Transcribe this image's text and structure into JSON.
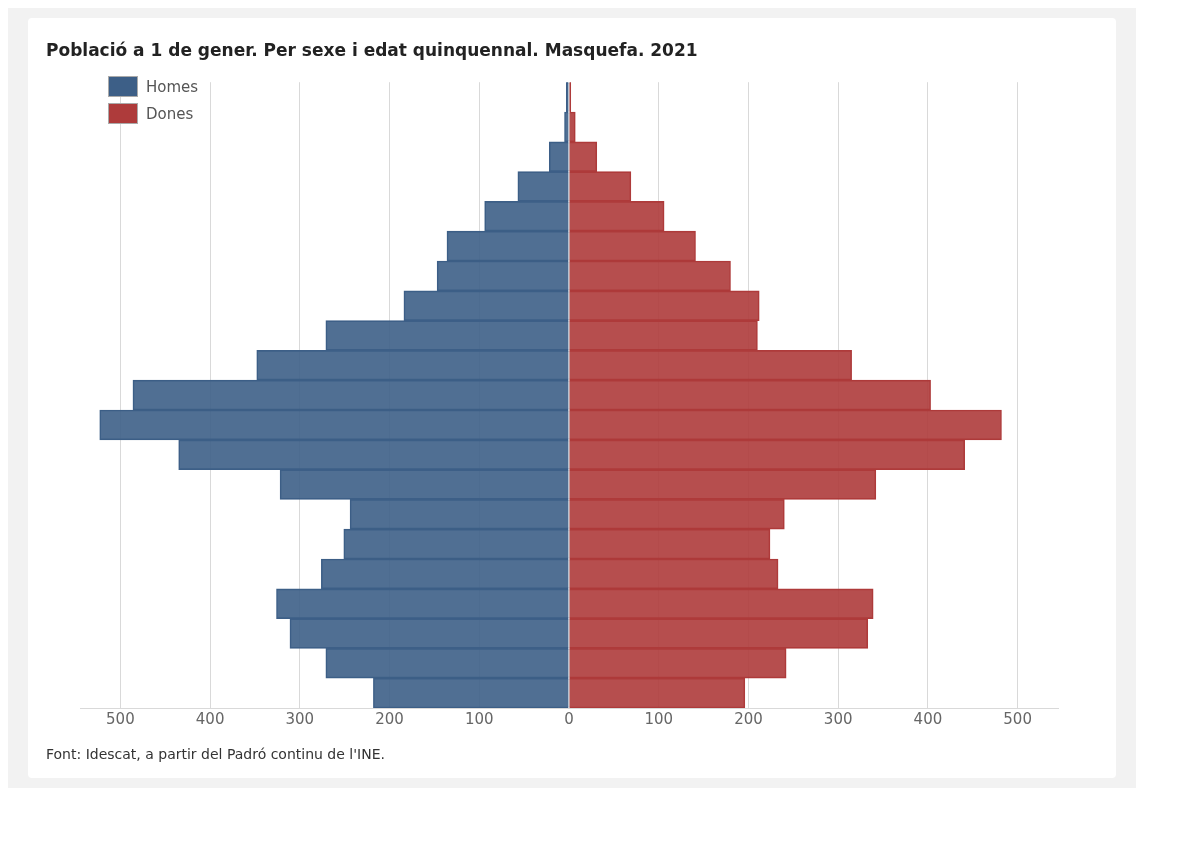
{
  "chart_data": {
    "type": "bar",
    "orientation": "horizontal",
    "stacked": true,
    "title": "Població a 1 de gener. Per sexe i edat quinquennal. Masquefa. 2021",
    "categories": [
      null,
      null,
      null,
      null,
      null,
      null,
      null,
      null,
      null,
      null,
      null,
      null,
      null,
      null,
      null,
      null,
      null,
      null,
      null,
      null,
      null
    ],
    "series": [
      {
        "name": "Homes",
        "color": "#3d5f87",
        "values": [
          -3,
          -5,
          -22,
          -57,
          -94,
          -136,
          -147,
          -184,
          -271,
          -348,
          -486,
          -523,
          -435,
          -322,
          -244,
          -251,
          -276,
          -326,
          -311,
          -271,
          -218
        ]
      },
      {
        "name": "Dones",
        "color": "#ae3b3b",
        "values": [
          2,
          7,
          31,
          69,
          106,
          141,
          180,
          212,
          210,
          315,
          403,
          482,
          441,
          342,
          240,
          224,
          233,
          339,
          333,
          242,
          196
        ]
      }
    ],
    "xticks": [
      {
        "value": -500,
        "label": "500"
      },
      {
        "value": -400,
        "label": "400"
      },
      {
        "value": -300,
        "label": "300"
      },
      {
        "value": -200,
        "label": "200"
      },
      {
        "value": -100,
        "label": "100"
      },
      0,
      100,
      200,
      300,
      400,
      500
    ],
    "xlim": [
      -545,
      545
    ],
    "grid": "x",
    "legend": "top left",
    "annotations": [
      "Font: Idescat, a partir del Padró continu de l'INE."
    ]
  }
}
